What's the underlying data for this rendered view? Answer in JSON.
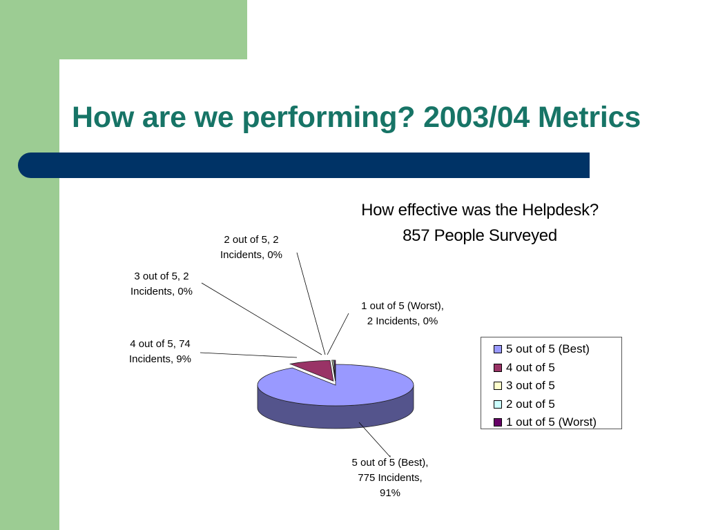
{
  "slide": {
    "title": "How are we performing? 2003/04 Metrics"
  },
  "chart_data": {
    "type": "pie",
    "title_lines": [
      "How effective was the Helpdesk?",
      "857 People Surveyed"
    ],
    "slices": [
      {
        "name": "5 out of 5 (Best)",
        "incidents": 775,
        "percent": 91,
        "color": "#9999ff",
        "label_lines": [
          "5 out of 5 (Best),",
          "775 Incidents,",
          "91%"
        ]
      },
      {
        "name": "4 out of 5",
        "incidents": 74,
        "percent": 9,
        "color": "#993366",
        "label_lines": [
          "4 out of 5, 74",
          "Incidents, 9%"
        ]
      },
      {
        "name": "3 out of 5",
        "incidents": 2,
        "percent": 0,
        "color": "#ffffcc",
        "label_lines": [
          "3 out of 5, 2",
          "Incidents, 0%"
        ]
      },
      {
        "name": "2 out of 5",
        "incidents": 2,
        "percent": 0,
        "color": "#ccffff",
        "label_lines": [
          "2 out of 5, 2",
          "Incidents, 0%"
        ]
      },
      {
        "name": "1 out of 5 (Worst)",
        "incidents": 2,
        "percent": 0,
        "color": "#660066",
        "label_lines": [
          "1 out of 5 (Worst),",
          "2 Incidents, 0%"
        ]
      }
    ],
    "legend": [
      "5 out of 5 (Best)",
      "4 out of 5",
      "3 out of 5",
      "2 out of 5",
      "1 out of 5 (Worst)"
    ],
    "legend_position": "right"
  }
}
